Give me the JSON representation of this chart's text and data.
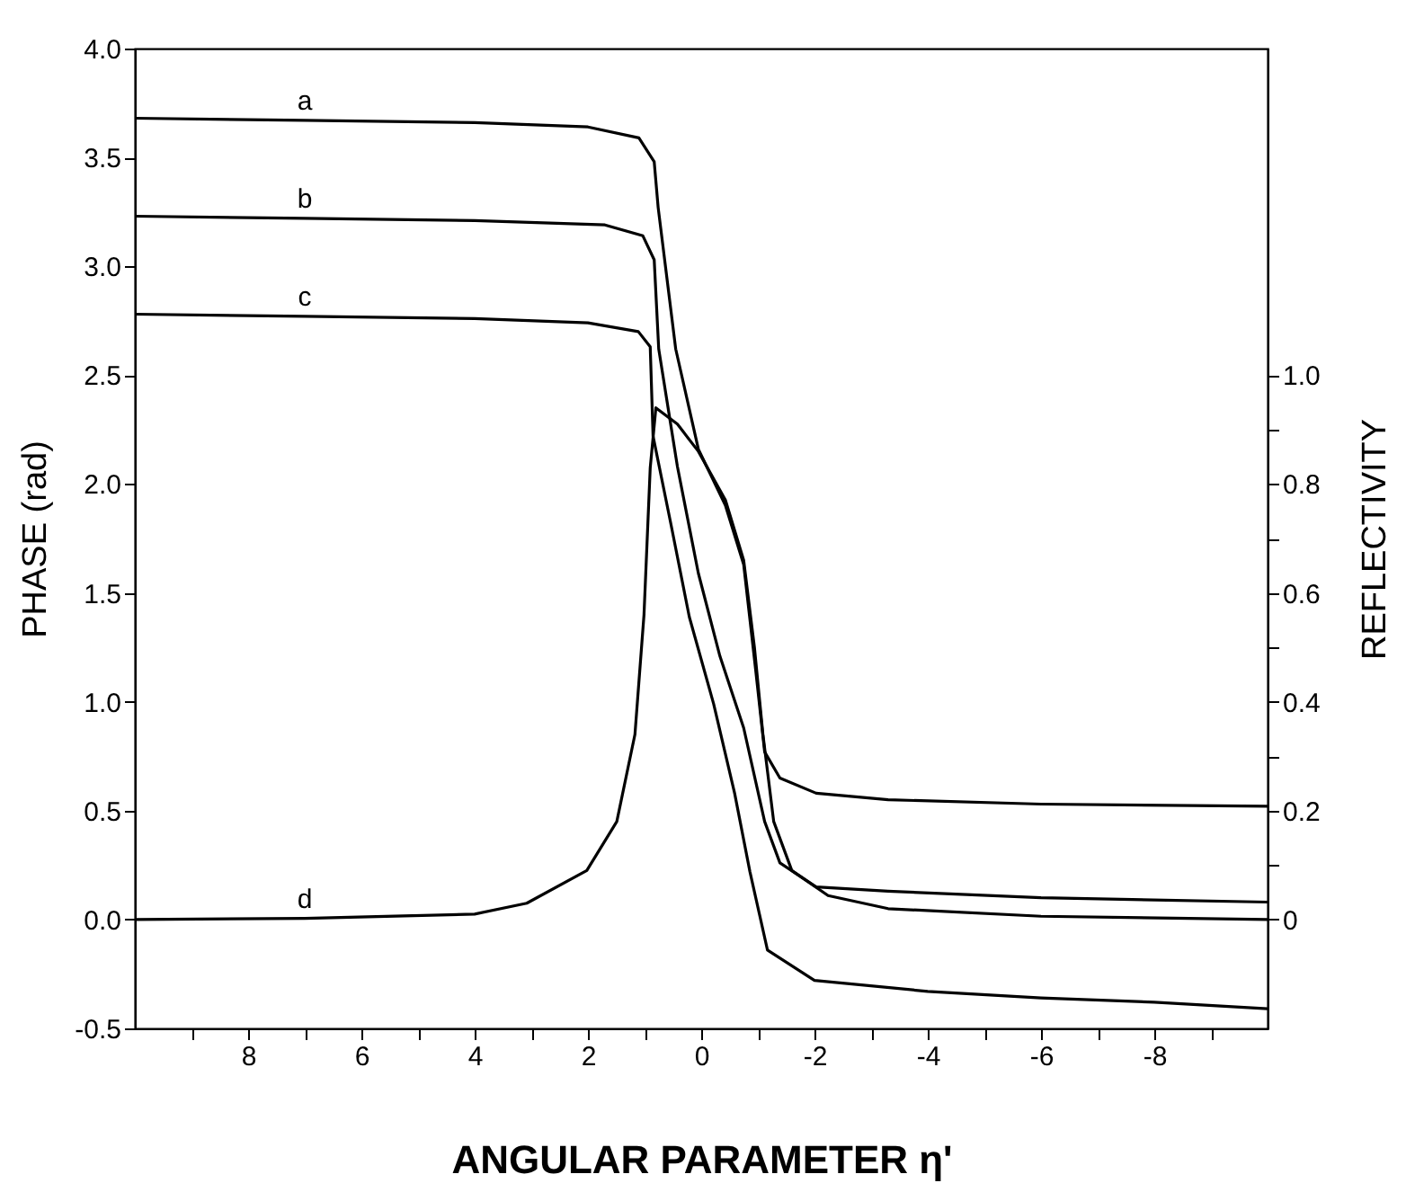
{
  "chart_data": {
    "type": "line",
    "xlabel": "ANGULAR PARAMETER η'",
    "ylabel": "PHASE (rad)",
    "y2label": "REFLECTIVITY",
    "xlim": [
      10,
      -10
    ],
    "xticks": [
      {
        "value": 9,
        "label": null
      },
      {
        "value": 8,
        "label": "8"
      },
      {
        "value": 7,
        "label": null
      },
      {
        "value": 6,
        "label": "6"
      },
      {
        "value": 5,
        "label": null
      },
      {
        "value": 4,
        "label": "4"
      },
      {
        "value": 3,
        "label": null
      },
      {
        "value": 2,
        "label": "2"
      },
      {
        "value": 1,
        "label": null
      },
      {
        "value": 0,
        "label": "0"
      },
      {
        "value": -1,
        "label": null
      },
      {
        "value": -2,
        "label": "-2"
      },
      {
        "value": -3,
        "label": null
      },
      {
        "value": -4,
        "label": "-4"
      },
      {
        "value": -5,
        "label": null
      },
      {
        "value": -6,
        "label": "-6"
      },
      {
        "value": -7,
        "label": null
      },
      {
        "value": -8,
        "label": "-8"
      },
      {
        "value": -9,
        "label": null
      }
    ],
    "ylim": [
      -0.5,
      4.0
    ],
    "yticks": [
      {
        "value": -0.5,
        "label": "-0.5"
      },
      {
        "value": 0,
        "label": "0.0"
      },
      {
        "value": 0.5,
        "label": "0.5"
      },
      {
        "value": 1,
        "label": "1.0"
      },
      {
        "value": 1.5,
        "label": "1.5"
      },
      {
        "value": 2,
        "label": "2.0"
      },
      {
        "value": 2.5,
        "label": "2.5"
      },
      {
        "value": 3,
        "label": "3.0"
      },
      {
        "value": 3.5,
        "label": "3.5"
      },
      {
        "value": 4,
        "label": "4.0"
      }
    ],
    "y2lim": [
      -0.2,
      1.6
    ],
    "y2ticks": [
      {
        "value": 0,
        "label": "0"
      },
      {
        "value": 0.1,
        "label": null
      },
      {
        "value": 0.2,
        "label": "0.2"
      },
      {
        "value": 0.3,
        "label": null
      },
      {
        "value": 0.4,
        "label": "0.4"
      },
      {
        "value": 0.5,
        "label": null
      },
      {
        "value": 0.6,
        "label": "0.6"
      },
      {
        "value": 0.7,
        "label": null
      },
      {
        "value": 0.8,
        "label": "0.8"
      },
      {
        "value": 0.9,
        "label": null
      },
      {
        "value": 1.0,
        "label": "1.0"
      }
    ],
    "series": [
      {
        "name": "a",
        "color": "#000000",
        "x": [
          10,
          7,
          4,
          2,
          1.1,
          0.83,
          0.76,
          0.45,
          0.05,
          -0.43,
          -0.75,
          -0.96,
          -1.12,
          -1.39,
          -2.03,
          -3.3,
          -6,
          -10
        ],
        "values": [
          3.68,
          3.67,
          3.66,
          3.64,
          3.59,
          3.48,
          3.27,
          2.62,
          2.16,
          1.9,
          1.63,
          1.15,
          0.77,
          0.65,
          0.58,
          0.55,
          0.53,
          0.52
        ]
      },
      {
        "name": "b",
        "color": "#000000",
        "x": [
          10,
          7,
          4,
          1.7,
          1.03,
          0.83,
          0.75,
          0.42,
          0.05,
          -0.33,
          -0.75,
          -1.12,
          -1.39,
          -2.03,
          -3.3,
          -6,
          -10
        ],
        "values": [
          3.23,
          3.22,
          3.21,
          3.19,
          3.14,
          3.03,
          2.62,
          2.08,
          1.59,
          1.21,
          0.88,
          0.45,
          0.26,
          0.15,
          0.13,
          0.1,
          0.08
        ]
      },
      {
        "name": "c",
        "color": "#000000",
        "x": [
          10,
          7,
          4,
          2,
          1.11,
          0.9,
          0.85,
          0.53,
          0.21,
          -0.22,
          -0.59,
          -0.86,
          -1.17,
          -2,
          -4,
          -6,
          -8,
          -10
        ],
        "values": [
          2.78,
          2.77,
          2.76,
          2.74,
          2.7,
          2.63,
          2.22,
          1.81,
          1.39,
          0.99,
          0.58,
          0.22,
          -0.14,
          -0.28,
          -0.33,
          -0.36,
          -0.38,
          -0.41
        ]
      },
      {
        "name": "d",
        "color": "#000000",
        "axis": "y2",
        "x": [
          10,
          7,
          4,
          3.08,
          2.02,
          1.49,
          1.17,
          1.01,
          0.9,
          0.8,
          0.42,
          0.05,
          -0.43,
          -0.75,
          -0.94,
          -1.09,
          -1.28,
          -1.6,
          -2.24,
          -3.3,
          -6,
          -10
        ],
        "values": [
          0,
          0.002,
          0.01,
          0.03,
          0.09,
          0.18,
          0.34,
          0.56,
          0.83,
          0.94,
          0.91,
          0.86,
          0.77,
          0.66,
          0.5,
          0.34,
          0.18,
          0.09,
          0.044,
          0.02,
          0.006,
          0
        ]
      }
    ]
  }
}
